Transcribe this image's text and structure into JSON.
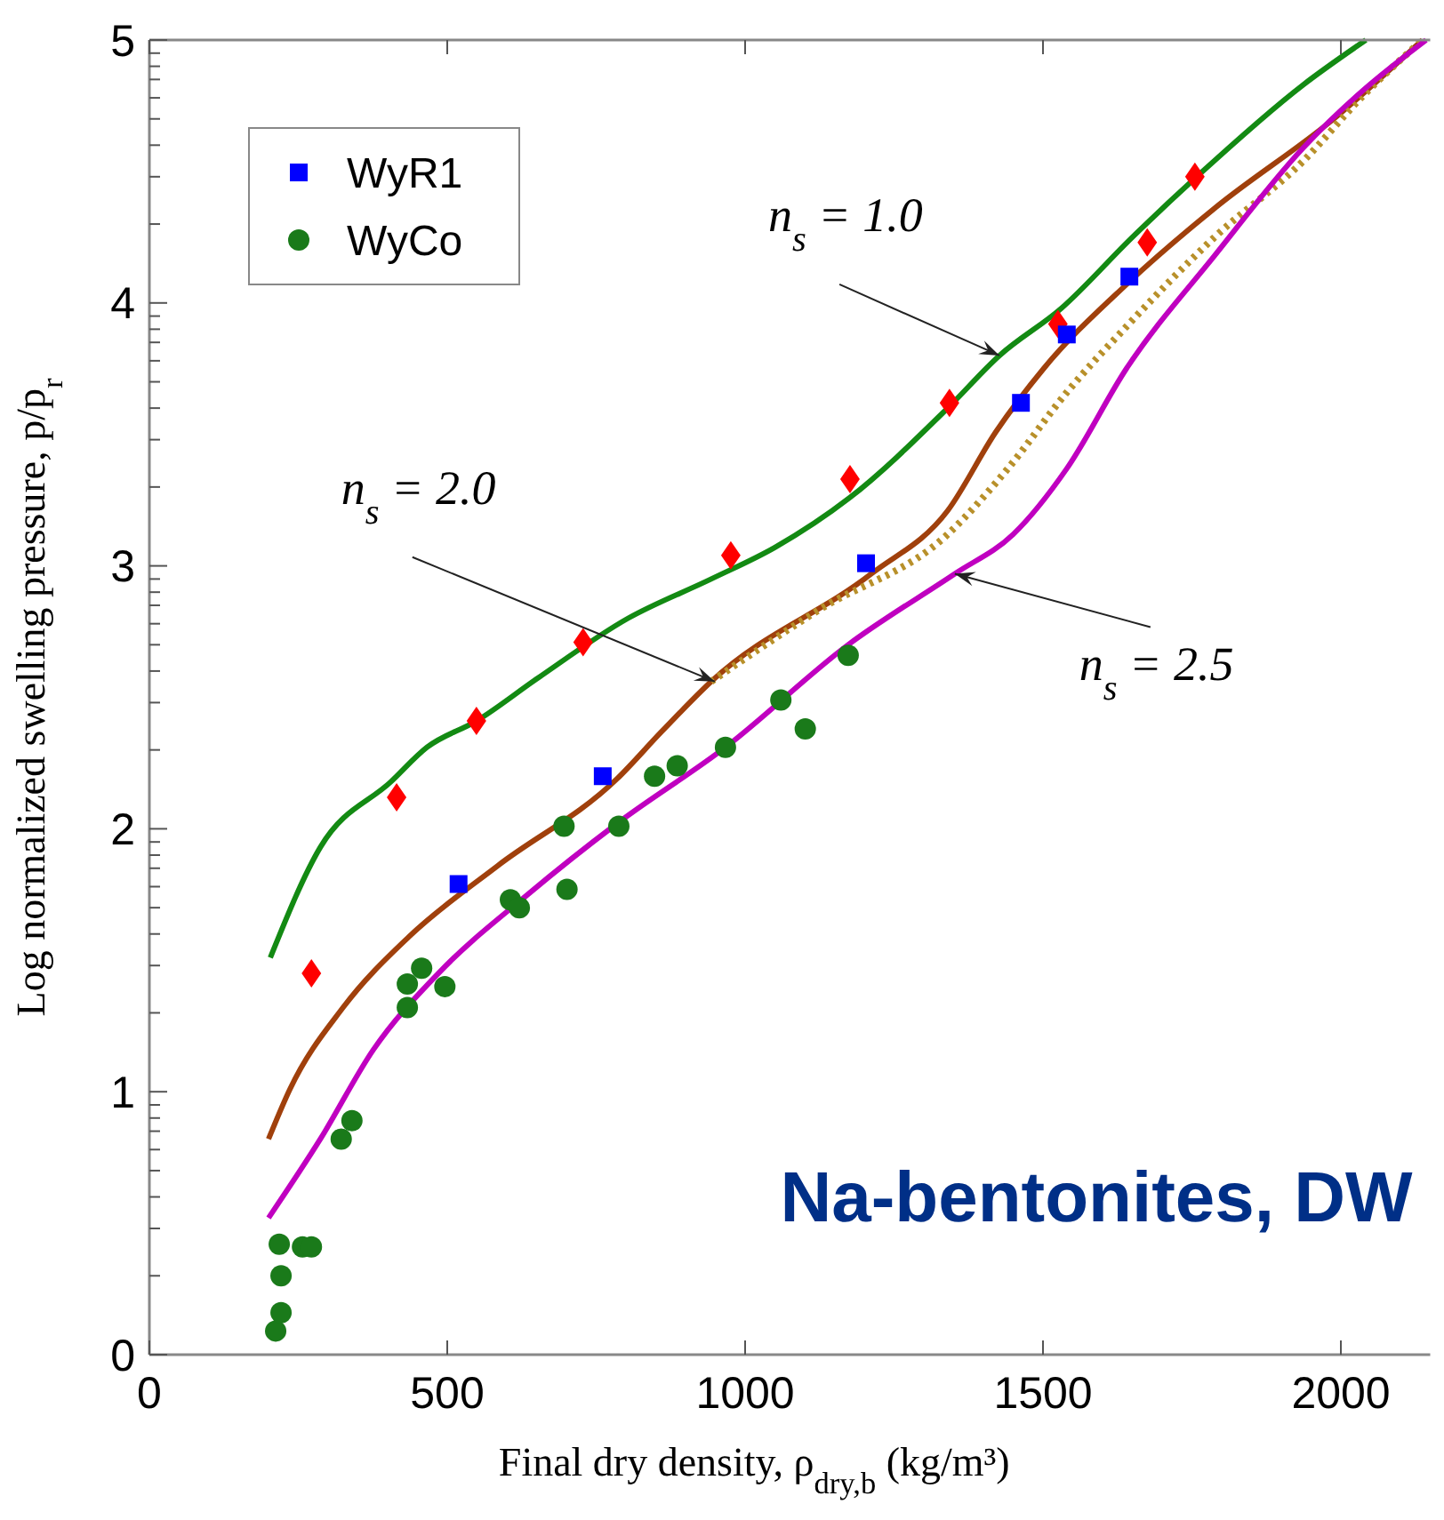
{
  "chart_data": {
    "type": "scatter",
    "xlabel": "Final dry density, ρ$_{dry,b}$ (kg/m³)",
    "ylabel": "Log normalized swelling pressure, p/p$_{r}$",
    "xlim": [
      0,
      2150
    ],
    "xticks": [
      0,
      500,
      1000,
      1500,
      2000
    ],
    "ylim": [
      0,
      5
    ],
    "yticks": [
      0,
      {
        "value": 0.3,
        "label": null
      },
      {
        "value": 0.48,
        "label": null
      },
      {
        "value": 0.6,
        "label": null
      },
      {
        "value": 0.7,
        "label": null
      },
      {
        "value": 0.78,
        "label": null
      },
      {
        "value": 0.85,
        "label": null
      },
      {
        "value": 0.9,
        "label": null
      },
      {
        "value": 0.95,
        "label": null
      },
      1,
      {
        "value": 1.3,
        "label": null
      },
      {
        "value": 1.48,
        "label": null
      },
      {
        "value": 1.6,
        "label": null
      },
      {
        "value": 1.7,
        "label": null
      },
      {
        "value": 1.78,
        "label": null
      },
      {
        "value": 1.85,
        "label": null
      },
      {
        "value": 1.9,
        "label": null
      },
      {
        "value": 1.95,
        "label": null
      },
      2,
      {
        "value": 2.3,
        "label": null
      },
      {
        "value": 2.48,
        "label": null
      },
      {
        "value": 2.6,
        "label": null
      },
      {
        "value": 2.7,
        "label": null
      },
      {
        "value": 2.78,
        "label": null
      },
      {
        "value": 2.85,
        "label": null
      },
      {
        "value": 2.9,
        "label": null
      },
      {
        "value": 2.95,
        "label": null
      },
      3,
      {
        "value": 3.3,
        "label": null
      },
      {
        "value": 3.48,
        "label": null
      },
      {
        "value": 3.6,
        "label": null
      },
      {
        "value": 3.7,
        "label": null
      },
      {
        "value": 3.78,
        "label": null
      },
      {
        "value": 3.85,
        "label": null
      },
      {
        "value": 3.9,
        "label": null
      },
      {
        "value": 3.95,
        "label": null
      },
      4,
      {
        "value": 4.3,
        "label": null
      },
      {
        "value": 4.48,
        "label": null
      },
      {
        "value": 4.6,
        "label": null
      },
      {
        "value": 4.7,
        "label": null
      },
      {
        "value": 4.78,
        "label": null
      },
      {
        "value": 4.85,
        "label": null
      },
      {
        "value": 4.9,
        "label": null
      },
      {
        "value": 4.95,
        "label": null
      },
      5
    ],
    "grid": false,
    "legend": "top left",
    "series": [
      {
        "type": "line",
        "color": "#138a13",
        "marker": "none",
        "line_style": "solid",
        "x": [
          203,
          287,
          406,
          466,
          549,
          650,
          803,
          943,
          1050,
          1176,
          1340,
          1427,
          1531,
          1650,
          1758,
          1937,
          2042
        ],
        "values": [
          1.51,
          1.93,
          2.18,
          2.31,
          2.41,
          2.57,
          2.8,
          2.95,
          3.07,
          3.26,
          3.6,
          3.8,
          3.98,
          4.25,
          4.48,
          4.83,
          5.0
        ]
      },
      {
        "type": "line",
        "color": "#a0400c",
        "marker": "none",
        "line_style": "solid",
        "x": [
          200,
          236,
          325,
          436,
          585,
          785,
          860,
          943,
          1212,
          1340,
          1421,
          1501,
          1640,
          1788,
          1988,
          2137
        ],
        "values": [
          0.82,
          1.01,
          1.32,
          1.59,
          1.86,
          2.19,
          2.37,
          2.56,
          2.97,
          3.21,
          3.51,
          3.75,
          4.07,
          4.36,
          4.7,
          5.0
        ]
      },
      {
        "type": "line",
        "color": "#b8902a",
        "marker": "none",
        "line_style": "dotted",
        "x": [
          943,
          1122,
          1340,
          1441,
          1540,
          1640,
          1788,
          1937,
          2038,
          2137
        ],
        "values": [
          2.56,
          2.83,
          3.12,
          3.37,
          3.66,
          3.91,
          4.25,
          4.54,
          4.79,
          5.0
        ]
      },
      {
        "type": "line",
        "color": "#c000c0",
        "marker": "none",
        "line_style": "solid",
        "x": [
          200,
          287,
          376,
          485,
          635,
          785,
          967,
          1173,
          1352,
          1450,
          1540,
          1640,
          1788,
          1937,
          2038,
          2143
        ],
        "values": [
          0.52,
          0.82,
          1.16,
          1.45,
          1.75,
          2.02,
          2.31,
          2.7,
          2.97,
          3.12,
          3.37,
          3.75,
          4.18,
          4.59,
          4.81,
          5.0
        ]
      },
      {
        "color": "#ff0000",
        "marker": "diamond",
        "x": [
          272,
          415,
          549,
          728,
          976,
          1176,
          1343,
          1525,
          1675,
          1755
        ],
        "values": [
          1.45,
          2.12,
          2.41,
          2.71,
          3.04,
          3.33,
          3.62,
          3.92,
          4.23,
          4.48
        ]
      },
      {
        "name": "WyR1",
        "color": "#0000ff",
        "marker": "square",
        "x": [
          519,
          761,
          1203,
          1463,
          1540,
          1645
        ],
        "values": [
          1.79,
          2.2,
          3.01,
          3.62,
          3.88,
          4.1
        ]
      },
      {
        "name": "WyCo",
        "color": "#1a7a1a",
        "marker": "circle",
        "x": [
          212,
          221,
          221,
          218,
          257,
          272,
          322,
          340,
          433,
          433,
          457,
          496,
          606,
          621,
          696,
          701,
          788,
          848,
          886,
          967,
          1060,
          1101,
          1173
        ],
        "values": [
          0.09,
          0.16,
          0.3,
          0.42,
          0.41,
          0.41,
          0.82,
          0.89,
          1.32,
          1.41,
          1.47,
          1.4,
          1.73,
          1.7,
          2.01,
          1.77,
          2.01,
          2.2,
          2.24,
          2.31,
          2.49,
          2.38,
          2.66
        ]
      }
    ],
    "annotations": [
      {
        "text": "n$_{s}$ = 1.0",
        "x": 1427,
        "y": 3.8
      },
      {
        "text": "n$_{s}$ = 2.0",
        "x": 949,
        "y": 2.56
      },
      {
        "text": "n$_{s}$ = 2.5",
        "x": 1352,
        "y": 2.97
      },
      "Na-bentonites, DW"
    ]
  }
}
